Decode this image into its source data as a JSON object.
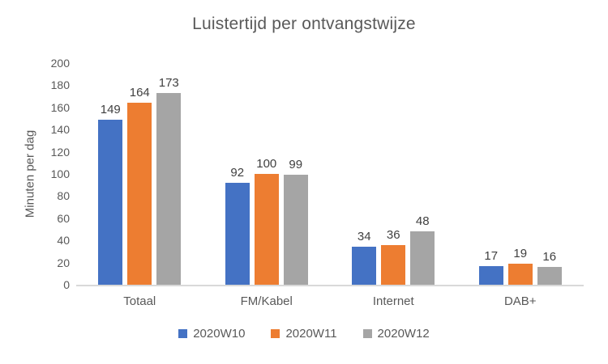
{
  "chart_data": {
    "type": "bar",
    "title": "Luistertijd per ontvangstwijze",
    "xlabel": "",
    "ylabel": "Minuten per dag",
    "categories": [
      "Totaal",
      "FM/Kabel",
      "Internet",
      "DAB+"
    ],
    "series": [
      {
        "name": "2020W10",
        "color": "#4472C4",
        "values": [
          149,
          92,
          34,
          17
        ]
      },
      {
        "name": "2020W11",
        "color": "#ED7D31",
        "values": [
          164,
          100,
          36,
          19
        ]
      },
      {
        "name": "2020W12",
        "color": "#A5A5A5",
        "values": [
          173,
          99,
          48,
          16
        ]
      }
    ],
    "ylim": [
      0,
      200
    ],
    "ytick_step": 20,
    "grid": false,
    "data_labels": true,
    "legend_position": "bottom"
  },
  "colors": {
    "series_blue": "#4472C4",
    "series_orange": "#ED7D31",
    "series_gray": "#A5A5A5",
    "title_text": "#595959",
    "axis_text": "#595959",
    "data_label_text": "#404040",
    "axis_line": "#D9D9D9",
    "background": "#FFFFFF"
  }
}
